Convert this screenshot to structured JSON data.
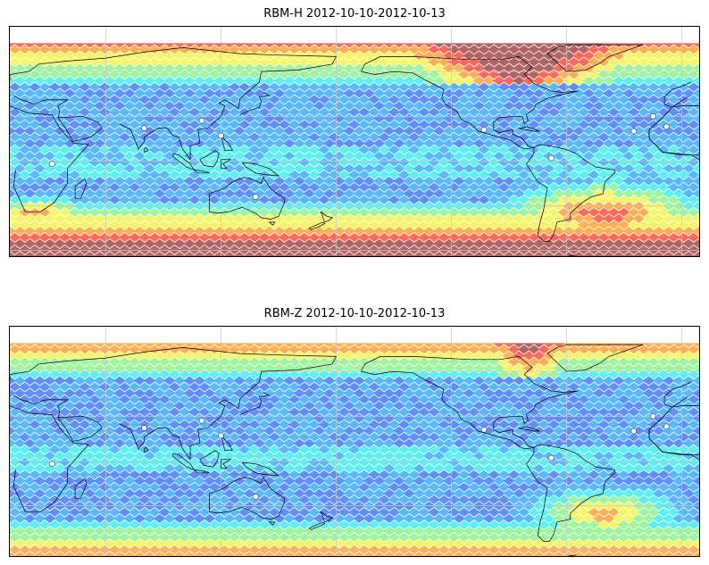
{
  "panels": [
    {
      "title": "RBM-H 2012-10-10-2012-10-13",
      "field": "rbm-h"
    },
    {
      "title": "RBM-Z 2012-10-10-2012-10-13",
      "field": "rbm-z"
    }
  ],
  "colormap": [
    "#6d6dff",
    "#5f8fff",
    "#5ab8ff",
    "#5ef0f0",
    "#9ff59f",
    "#f5f56a",
    "#ffb056",
    "#ff6a5a",
    "#b06464"
  ],
  "gridline_color": "#c8c8c8",
  "coastline_color": "#000000"
}
